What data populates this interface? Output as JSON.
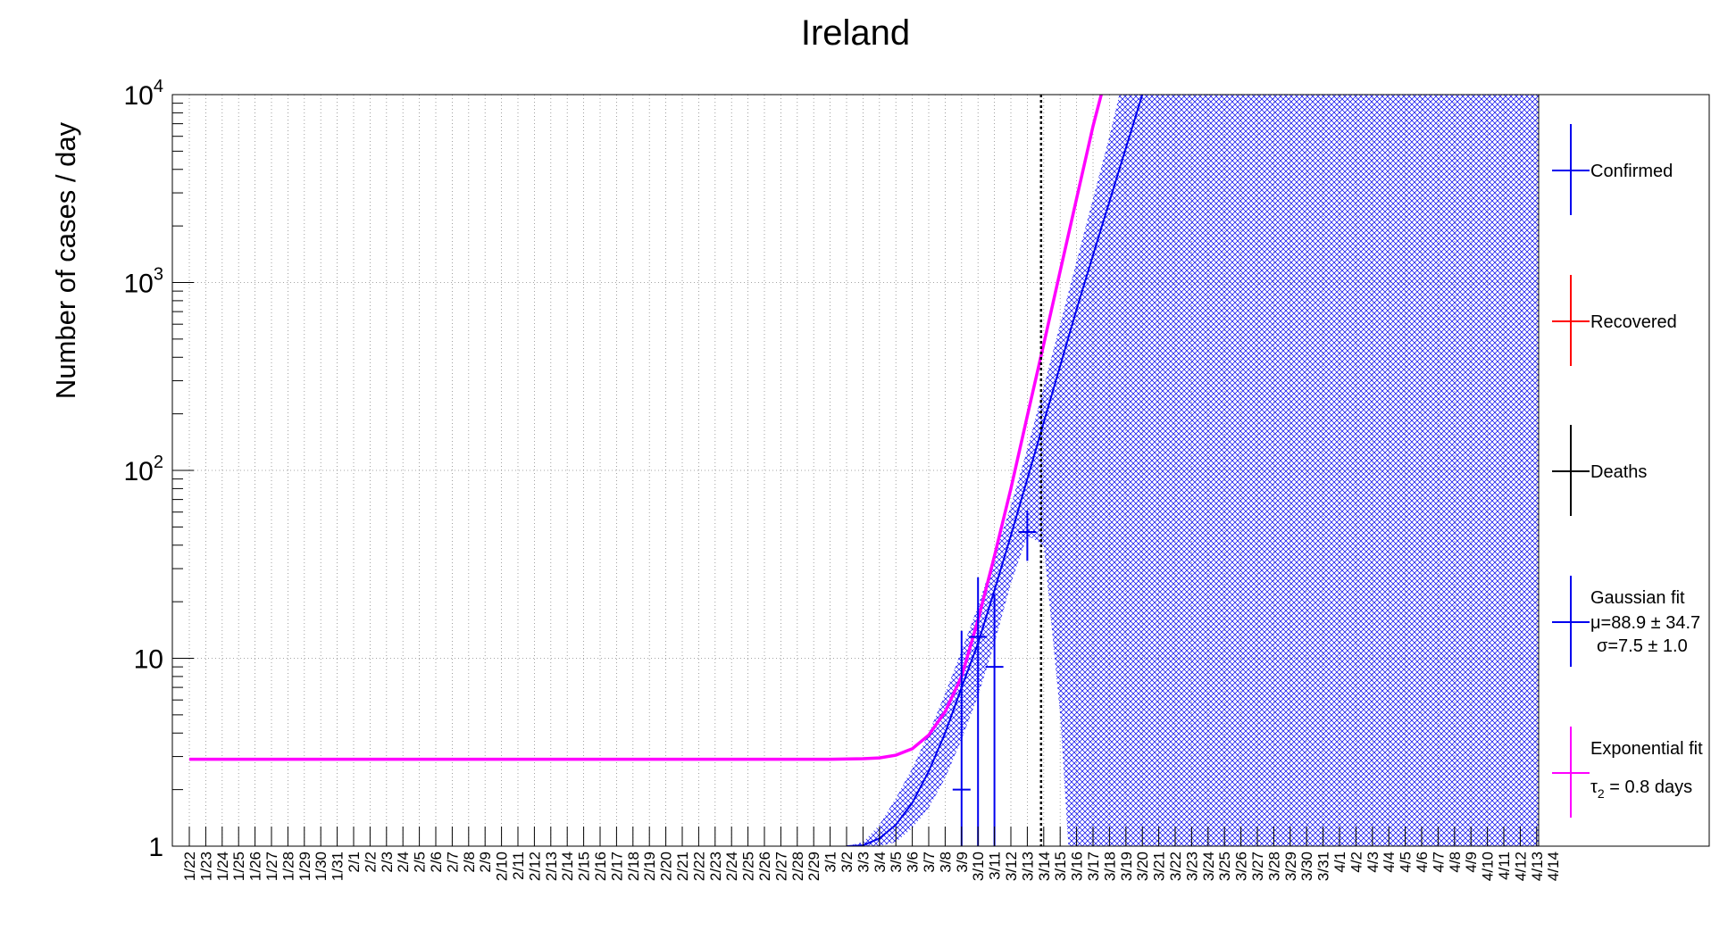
{
  "chart_data": {
    "type": "line",
    "title": "Ireland",
    "ylabel": "Number of cases / day",
    "xlabel": "",
    "y_scale": "log",
    "ylim": [
      1,
      10000
    ],
    "y_ticks": [
      {
        "value": 1,
        "base": "1",
        "exp": ""
      },
      {
        "value": 10,
        "base": "10",
        "exp": ""
      },
      {
        "value": 100,
        "base": "10",
        "exp": "2"
      },
      {
        "value": 1000,
        "base": "10",
        "exp": "3"
      },
      {
        "value": 10000,
        "base": "10",
        "exp": "4"
      }
    ],
    "grid": true,
    "legend_position": "right",
    "x_categories": [
      "1/22",
      "1/23",
      "1/24",
      "1/25",
      "1/26",
      "1/27",
      "1/28",
      "1/29",
      "1/30",
      "1/31",
      "2/1",
      "2/2",
      "2/3",
      "2/4",
      "2/5",
      "2/6",
      "2/7",
      "2/8",
      "2/9",
      "2/10",
      "2/11",
      "2/12",
      "2/13",
      "2/14",
      "2/15",
      "2/16",
      "2/17",
      "2/18",
      "2/19",
      "2/20",
      "2/21",
      "2/22",
      "2/23",
      "2/24",
      "2/25",
      "2/26",
      "2/27",
      "2/28",
      "2/29",
      "3/1",
      "3/2",
      "3/3",
      "3/4",
      "3/5",
      "3/6",
      "3/7",
      "3/8",
      "3/9",
      "3/10",
      "3/11",
      "3/12",
      "3/13",
      "3/14",
      "3/15",
      "3/16",
      "3/17",
      "3/18",
      "3/19",
      "3/20",
      "3/21",
      "3/22",
      "3/23",
      "3/24",
      "3/25",
      "3/26",
      "3/27",
      "3/28",
      "3/29",
      "3/30",
      "3/31",
      "4/1",
      "4/2",
      "4/3",
      "4/4",
      "4/5",
      "4/6",
      "4/7",
      "4/8",
      "4/9",
      "4/10",
      "4/11",
      "4/12",
      "4/13",
      "4/14"
    ],
    "reference_line_date": "3/14",
    "series": [
      {
        "name": "Confirmed",
        "color": "#0000ee",
        "points": [
          {
            "x": "3/9",
            "y": 2,
            "err_low": 1,
            "err_high": 14
          },
          {
            "x": "3/10",
            "y": 13,
            "err_low": 1,
            "err_high": 27
          },
          {
            "x": "3/11",
            "y": 9,
            "err_low": 1,
            "err_high": 22
          },
          {
            "x": "3/13",
            "y": 47,
            "err_low": 33,
            "err_high": 61
          }
        ]
      },
      {
        "name": "Recovered",
        "color": "#ff0000",
        "points": []
      },
      {
        "name": "Deaths",
        "color": "#000000",
        "points": []
      },
      {
        "name": "Gaussian fit",
        "color": "#0000ee",
        "mu": "88.9 ± 34.7",
        "sigma": "7.5 ± 1.0",
        "curve": [
          {
            "x": "3/2",
            "y": 1.0
          },
          {
            "x": "3/3",
            "y": 1.01
          },
          {
            "x": "3/4",
            "y": 1.1
          },
          {
            "x": "3/5",
            "y": 1.3
          },
          {
            "x": "3/6",
            "y": 1.7
          },
          {
            "x": "3/7",
            "y": 2.5
          },
          {
            "x": "3/8",
            "y": 4
          },
          {
            "x": "3/9",
            "y": 7
          },
          {
            "x": "3/10",
            "y": 12
          },
          {
            "x": "3/11",
            "y": 23
          },
          {
            "x": "3/12",
            "y": 45
          },
          {
            "x": "3/13",
            "y": 90
          },
          {
            "x": "3/14",
            "y": 180
          },
          {
            "x": "3/15",
            "y": 360
          },
          {
            "x": "3/16",
            "y": 720
          },
          {
            "x": "3/17",
            "y": 1400
          },
          {
            "x": "3/18",
            "y": 2700
          },
          {
            "x": "3/19",
            "y": 5200
          },
          {
            "x": "3/20",
            "y": 10000
          }
        ],
        "band_upper": [
          {
            "x": "3/2",
            "y": 1.0
          },
          {
            "x": "3/3",
            "y": 1.05
          },
          {
            "x": "3/4",
            "y": 1.3
          },
          {
            "x": "3/5",
            "y": 1.8
          },
          {
            "x": "3/6",
            "y": 2.6
          },
          {
            "x": "3/7",
            "y": 4
          },
          {
            "x": "3/8",
            "y": 6.5
          },
          {
            "x": "3/9",
            "y": 11
          },
          {
            "x": "3/10",
            "y": 19
          },
          {
            "x": "3/11",
            "y": 35
          },
          {
            "x": "3/12",
            "y": 65
          },
          {
            "x": "3/13",
            "y": 130
          },
          {
            "x": "3/14",
            "y": 280
          },
          {
            "x": "3/15",
            "y": 600
          },
          {
            "x": "3/16",
            "y": 1300
          },
          {
            "x": "3/17",
            "y": 2800
          },
          {
            "x": "3/18",
            "y": 6000
          },
          {
            "x": "3/18.6",
            "y": 10000
          }
        ],
        "band_lower": [
          {
            "x": "3/2",
            "y": 1.0
          },
          {
            "x": "3/4",
            "y": 1.0
          },
          {
            "x": "3/5",
            "y": 1.05
          },
          {
            "x": "3/6",
            "y": 1.25
          },
          {
            "x": "3/7",
            "y": 1.6
          },
          {
            "x": "3/8",
            "y": 2.3
          },
          {
            "x": "3/9",
            "y": 3.7
          },
          {
            "x": "3/10",
            "y": 6.3
          },
          {
            "x": "3/11",
            "y": 12
          },
          {
            "x": "3/12",
            "y": 25
          },
          {
            "x": "3/13",
            "y": 45
          },
          {
            "x": "3/14",
            "y": 40
          },
          {
            "x": "3/15",
            "y": 5
          },
          {
            "x": "3/15.5",
            "y": 1
          }
        ]
      },
      {
        "name": "Exponential fit",
        "color": "#ff00ff",
        "tau": "τ2 = 0.8 days",
        "curve": [
          {
            "x": "1/22",
            "y": 2.9
          },
          {
            "x": "3/1",
            "y": 2.9
          },
          {
            "x": "3/3",
            "y": 2.92
          },
          {
            "x": "3/4",
            "y": 2.95
          },
          {
            "x": "3/5",
            "y": 3.05
          },
          {
            "x": "3/6",
            "y": 3.3
          },
          {
            "x": "3/7",
            "y": 3.9
          },
          {
            "x": "3/8",
            "y": 5.2
          },
          {
            "x": "3/9",
            "y": 8
          },
          {
            "x": "3/10",
            "y": 16
          },
          {
            "x": "3/11",
            "y": 35
          },
          {
            "x": "3/12",
            "y": 80
          },
          {
            "x": "3/13",
            "y": 195
          },
          {
            "x": "3/14",
            "y": 470
          },
          {
            "x": "3/15",
            "y": 1150
          },
          {
            "x": "3/16",
            "y": 2800
          },
          {
            "x": "3/17",
            "y": 6800
          },
          {
            "x": "3/17.5",
            "y": 10000
          }
        ]
      }
    ],
    "legend": [
      {
        "label": "Confirmed",
        "color": "#0000ee"
      },
      {
        "label": "Recovered",
        "color": "#ff0000"
      },
      {
        "label": "Deaths",
        "color": "#000000"
      },
      {
        "label": "Gaussian fit",
        "sub1": "μ=88.9 ± 34.7",
        "sub2": "σ=7.5 ± 1.0",
        "color": "#0000ee"
      },
      {
        "label": "Exponential fit",
        "sub1": "τ",
        "sub1_sub": "2",
        "sub1_rest": " = 0.8 days",
        "color": "#ff00ff"
      }
    ]
  }
}
